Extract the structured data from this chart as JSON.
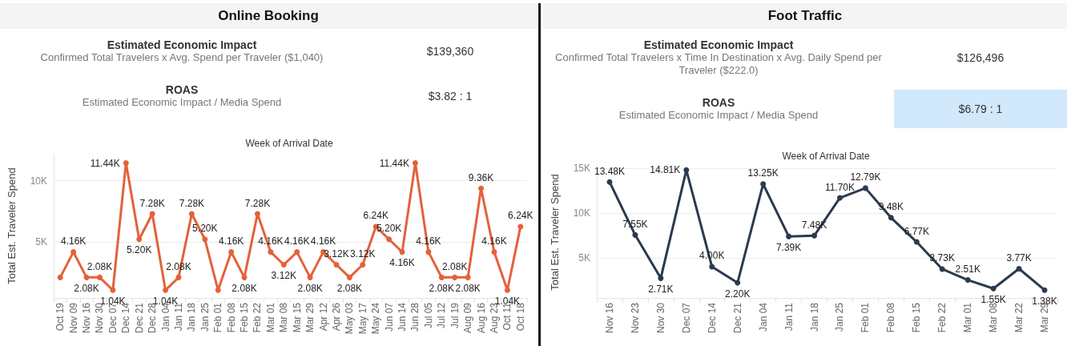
{
  "chart_data": [
    {
      "type": "other",
      "title": "Online Booking",
      "annotations": [
        "Estimated Economic Impact",
        "Confirmed Total Travelers x Avg. Spend per Traveler ($1,040)",
        "$139,360",
        "ROAS",
        "Estimated Economic Impact / Media Spend",
        "$3.82 : 1"
      ]
    },
    {
      "type": "line",
      "xlabel": "Week of Arrival Date",
      "ylabel": "Total Est. Traveler Spend",
      "categories": [
        "Oct 19",
        "Nov 09",
        "Nov 16",
        "Nov 30",
        "Dec 07",
        "Dec 14",
        "Dec 21",
        "Dec 28",
        "Jan 04",
        "Jan 11",
        "Jan 18",
        "Jan 25",
        "Feb 01",
        "Feb 08",
        "Feb 15",
        "Feb 22",
        "Mar 01",
        "Mar 08",
        "Mar 15",
        "Mar 29",
        "Apr 12",
        "Apr 26",
        "May 03",
        "May 17",
        "May 24",
        "Jun 07",
        "Jun 14",
        "Jun 28",
        "Jul 05",
        "Jul 12",
        "Jul 19",
        "Aug 09",
        "Aug 16",
        "Aug 23",
        "Oct 11",
        "Oct 18"
      ],
      "values": [
        2080,
        4160,
        2080,
        2080,
        1040,
        11440,
        5200,
        7280,
        1040,
        2080,
        7280,
        5200,
        1040,
        4160,
        2080,
        7280,
        4160,
        3120,
        4160,
        2080,
        4160,
        3120,
        2080,
        3120,
        6240,
        5200,
        4160,
        11440,
        4160,
        2080,
        2080,
        2080,
        9360,
        4160,
        1040,
        6240
      ],
      "value_labels": [
        null,
        "4.16K",
        "2.08K",
        "2.08K",
        "1.04K",
        "11.44K",
        "5.20K",
        "7.28K",
        "1.04K",
        "2.08K",
        "7.28K",
        "5.20K",
        null,
        "4.16K",
        "2.08K",
        "7.28K",
        "4.16K",
        "3.12K",
        "4.16K",
        "2.08K",
        "4.16K",
        "3.12K",
        "2.08K",
        "3.12K",
        "6.24K",
        "5.20K",
        "4.16K",
        "11.44K",
        "4.16K",
        "2.08K",
        "2.08K",
        "2.08K",
        "9.36K",
        "4.16K",
        "1.04K",
        "6.24K"
      ],
      "color": "#e4613a",
      "ylim": [
        400,
        12200
      ],
      "yticks": [
        {
          "value": 5000,
          "label": "5K"
        },
        {
          "value": 10000,
          "label": "10K"
        }
      ],
      "grid": "y",
      "marker": "circle"
    },
    {
      "type": "other",
      "title": "Foot Traffic",
      "annotations": [
        "Estimated Economic Impact",
        "Confirmed Total Travelers x Time In Destination x Avg. Daily Spend per Traveler ($222.0)",
        "$126,496",
        "ROAS",
        "Estimated Economic Impact / Media Spend",
        "$6.79 : 1"
      ]
    },
    {
      "type": "line",
      "xlabel": "Week of Arrival Date",
      "ylabel": "Total Est. Traveler Spend",
      "categories": [
        "Nov 16",
        "Nov 23",
        "Nov 30",
        "Dec 07",
        "Dec 14",
        "Dec 21",
        "Jan 04",
        "Jan 11",
        "Jan 18",
        "Jan 25",
        "Feb 01",
        "Feb 08",
        "Feb 15",
        "Feb 22",
        "Mar 01",
        "Mar 08",
        "Mar 22",
        "Mar 29"
      ],
      "values": [
        13480,
        7550,
        2710,
        14810,
        4000,
        2200,
        13250,
        7390,
        7480,
        11700,
        12790,
        9480,
        6770,
        3730,
        2510,
        1550,
        3770,
        1380
      ],
      "value_labels": [
        "13.48K",
        "7.55K",
        "2.71K",
        "14.81K",
        "4.00K",
        "2.20K",
        "13.25K",
        "7.39K",
        "7.48K",
        "11.70K",
        "12.79K",
        "9.48K",
        "6.77K",
        "3.73K",
        "2.51K",
        "1.55K",
        "3.77K",
        "1.38K"
      ],
      "color": "#2b3a4f",
      "ylim": [
        500,
        15200
      ],
      "yticks": [
        {
          "value": 5000,
          "label": "5K"
        },
        {
          "value": 10000,
          "label": "10K"
        },
        {
          "value": 15000,
          "label": "15K"
        }
      ],
      "grid": "y",
      "marker": "circle"
    }
  ]
}
